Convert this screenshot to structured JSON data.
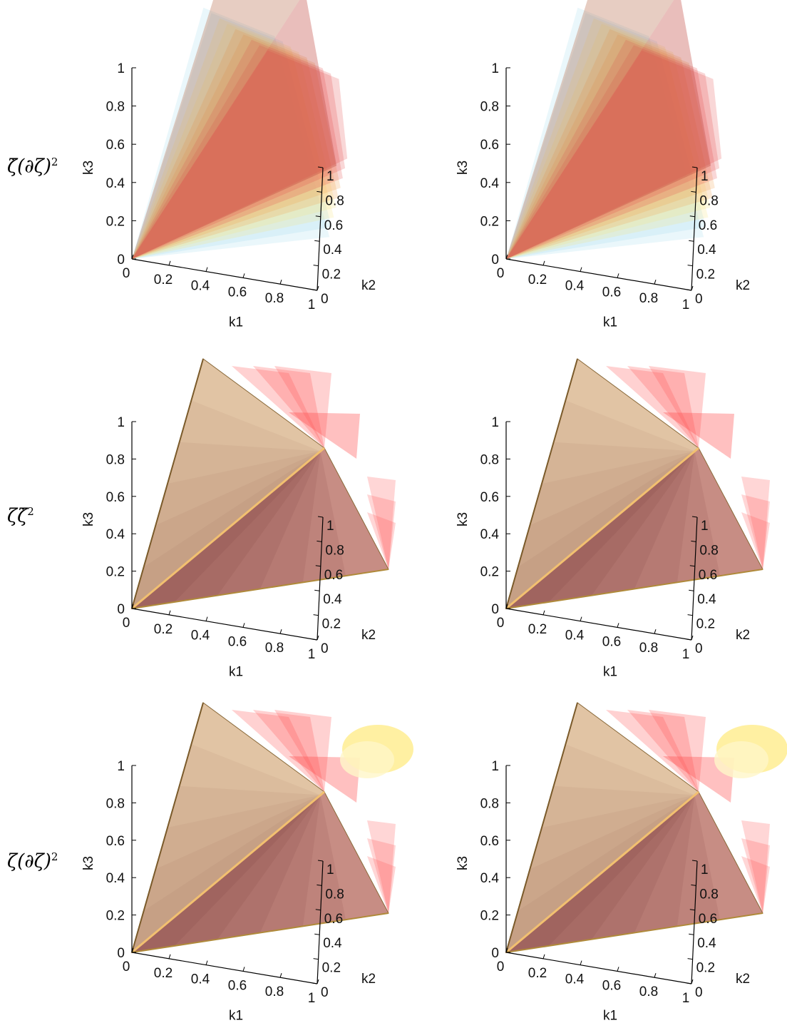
{
  "figure": {
    "row_labels": [
      {
        "pre": "ζ̇",
        "mid": "(∂ζ)",
        "sup": "2"
      },
      {
        "pre": "ζζ̇",
        "mid": "",
        "sup": "2"
      },
      {
        "pre": "ζ",
        "mid": "(∂ζ)",
        "sup": "2"
      }
    ]
  },
  "chart_data": [
    {
      "type": "3d-isosurface",
      "row": 1,
      "col": 1,
      "xlabel": "k1",
      "ylabel": "k2",
      "zlabel": "k3",
      "xticks": [
        "0",
        "0.2",
        "0.4",
        "0.6",
        "0.8",
        "1"
      ],
      "yticks": [
        "0",
        "0.2",
        "0.4",
        "0.6",
        "0.8",
        "1"
      ],
      "zticks": [
        "0",
        "0.2",
        "0.4",
        "0.6",
        "0.8",
        "1"
      ],
      "xlim": [
        0,
        1
      ],
      "ylim": [
        0,
        1
      ],
      "zlim": [
        0,
        1
      ],
      "grid": false,
      "variant": "flared",
      "colors": [
        "#9fd9ec",
        "#f5e27a",
        "#f2a04a",
        "#e24a4a"
      ]
    },
    {
      "type": "3d-isosurface",
      "row": 1,
      "col": 2,
      "xlabel": "k1",
      "ylabel": "k2",
      "zlabel": "k3",
      "xticks": [
        "0",
        "0.2",
        "0.4",
        "0.6",
        "0.8",
        "1"
      ],
      "yticks": [
        "0",
        "0.2",
        "0.4",
        "0.6",
        "0.8",
        "1"
      ],
      "zticks": [
        "0",
        "0.2",
        "0.4",
        "0.6",
        "0.8",
        "1"
      ],
      "xlim": [
        0,
        1
      ],
      "ylim": [
        0,
        1
      ],
      "zlim": [
        0,
        1
      ],
      "grid": false,
      "variant": "flared",
      "colors": [
        "#9fd9ec",
        "#f5e27a",
        "#f2a04a",
        "#e24a4a"
      ]
    },
    {
      "type": "3d-isosurface",
      "row": 2,
      "col": 1,
      "xlabel": "k1",
      "ylabel": "k2",
      "zlabel": "k3",
      "xticks": [
        "0",
        "0.2",
        "0.4",
        "0.6",
        "0.8",
        "1"
      ],
      "yticks": [
        "0",
        "0.2",
        "0.4",
        "0.6",
        "0.8",
        "1"
      ],
      "zticks": [
        "0",
        "0.2",
        "0.4",
        "0.6",
        "0.8",
        "1"
      ],
      "xlim": [
        0,
        1
      ],
      "ylim": [
        0,
        1
      ],
      "zlim": [
        0,
        1
      ],
      "grid": false,
      "variant": "pyramid",
      "colors": [
        "#e7c48a",
        "#c97a5e",
        "#9a3a30",
        "#ff6b6b"
      ]
    },
    {
      "type": "3d-isosurface",
      "row": 2,
      "col": 2,
      "xlabel": "k1",
      "ylabel": "k2",
      "zlabel": "k3",
      "xticks": [
        "0",
        "0.2",
        "0.4",
        "0.6",
        "0.8",
        "1"
      ],
      "yticks": [
        "0",
        "0.2",
        "0.4",
        "0.6",
        "0.8",
        "1"
      ],
      "zticks": [
        "0",
        "0.2",
        "0.4",
        "0.6",
        "0.8",
        "1"
      ],
      "xlim": [
        0,
        1
      ],
      "ylim": [
        0,
        1
      ],
      "zlim": [
        0,
        1
      ],
      "grid": false,
      "variant": "pyramid",
      "colors": [
        "#e7c48a",
        "#c97a5e",
        "#9a3a30",
        "#ff6b6b"
      ]
    },
    {
      "type": "3d-isosurface",
      "row": 3,
      "col": 1,
      "xlabel": "k1",
      "ylabel": "k2",
      "zlabel": "k3",
      "xticks": [
        "0",
        "0.2",
        "0.4",
        "0.6",
        "0.8",
        "1"
      ],
      "yticks": [
        "0",
        "0.2",
        "0.4",
        "0.6",
        "0.8",
        "1"
      ],
      "zticks": [
        "0",
        "0.2",
        "0.4",
        "0.6",
        "0.8",
        "1"
      ],
      "xlim": [
        0,
        1
      ],
      "ylim": [
        0,
        1
      ],
      "zlim": [
        0,
        1
      ],
      "grid": false,
      "variant": "pyramid-glow",
      "colors": [
        "#e7c48a",
        "#c97a5e",
        "#9a3a30",
        "#ff6b6b",
        "#ffe36b"
      ]
    },
    {
      "type": "3d-isosurface",
      "row": 3,
      "col": 2,
      "xlabel": "k1",
      "ylabel": "k2",
      "zlabel": "k3",
      "xticks": [
        "0",
        "0.2",
        "0.4",
        "0.6",
        "0.8",
        "1"
      ],
      "yticks": [
        "0",
        "0.2",
        "0.4",
        "0.6",
        "0.8",
        "1"
      ],
      "zticks": [
        "0",
        "0.2",
        "0.4",
        "0.6",
        "0.8",
        "1"
      ],
      "xlim": [
        0,
        1
      ],
      "ylim": [
        0,
        1
      ],
      "zlim": [
        0,
        1
      ],
      "grid": false,
      "variant": "pyramid-glow",
      "colors": [
        "#e7c48a",
        "#c97a5e",
        "#9a3a30",
        "#ff6b6b",
        "#ffe36b"
      ]
    }
  ]
}
